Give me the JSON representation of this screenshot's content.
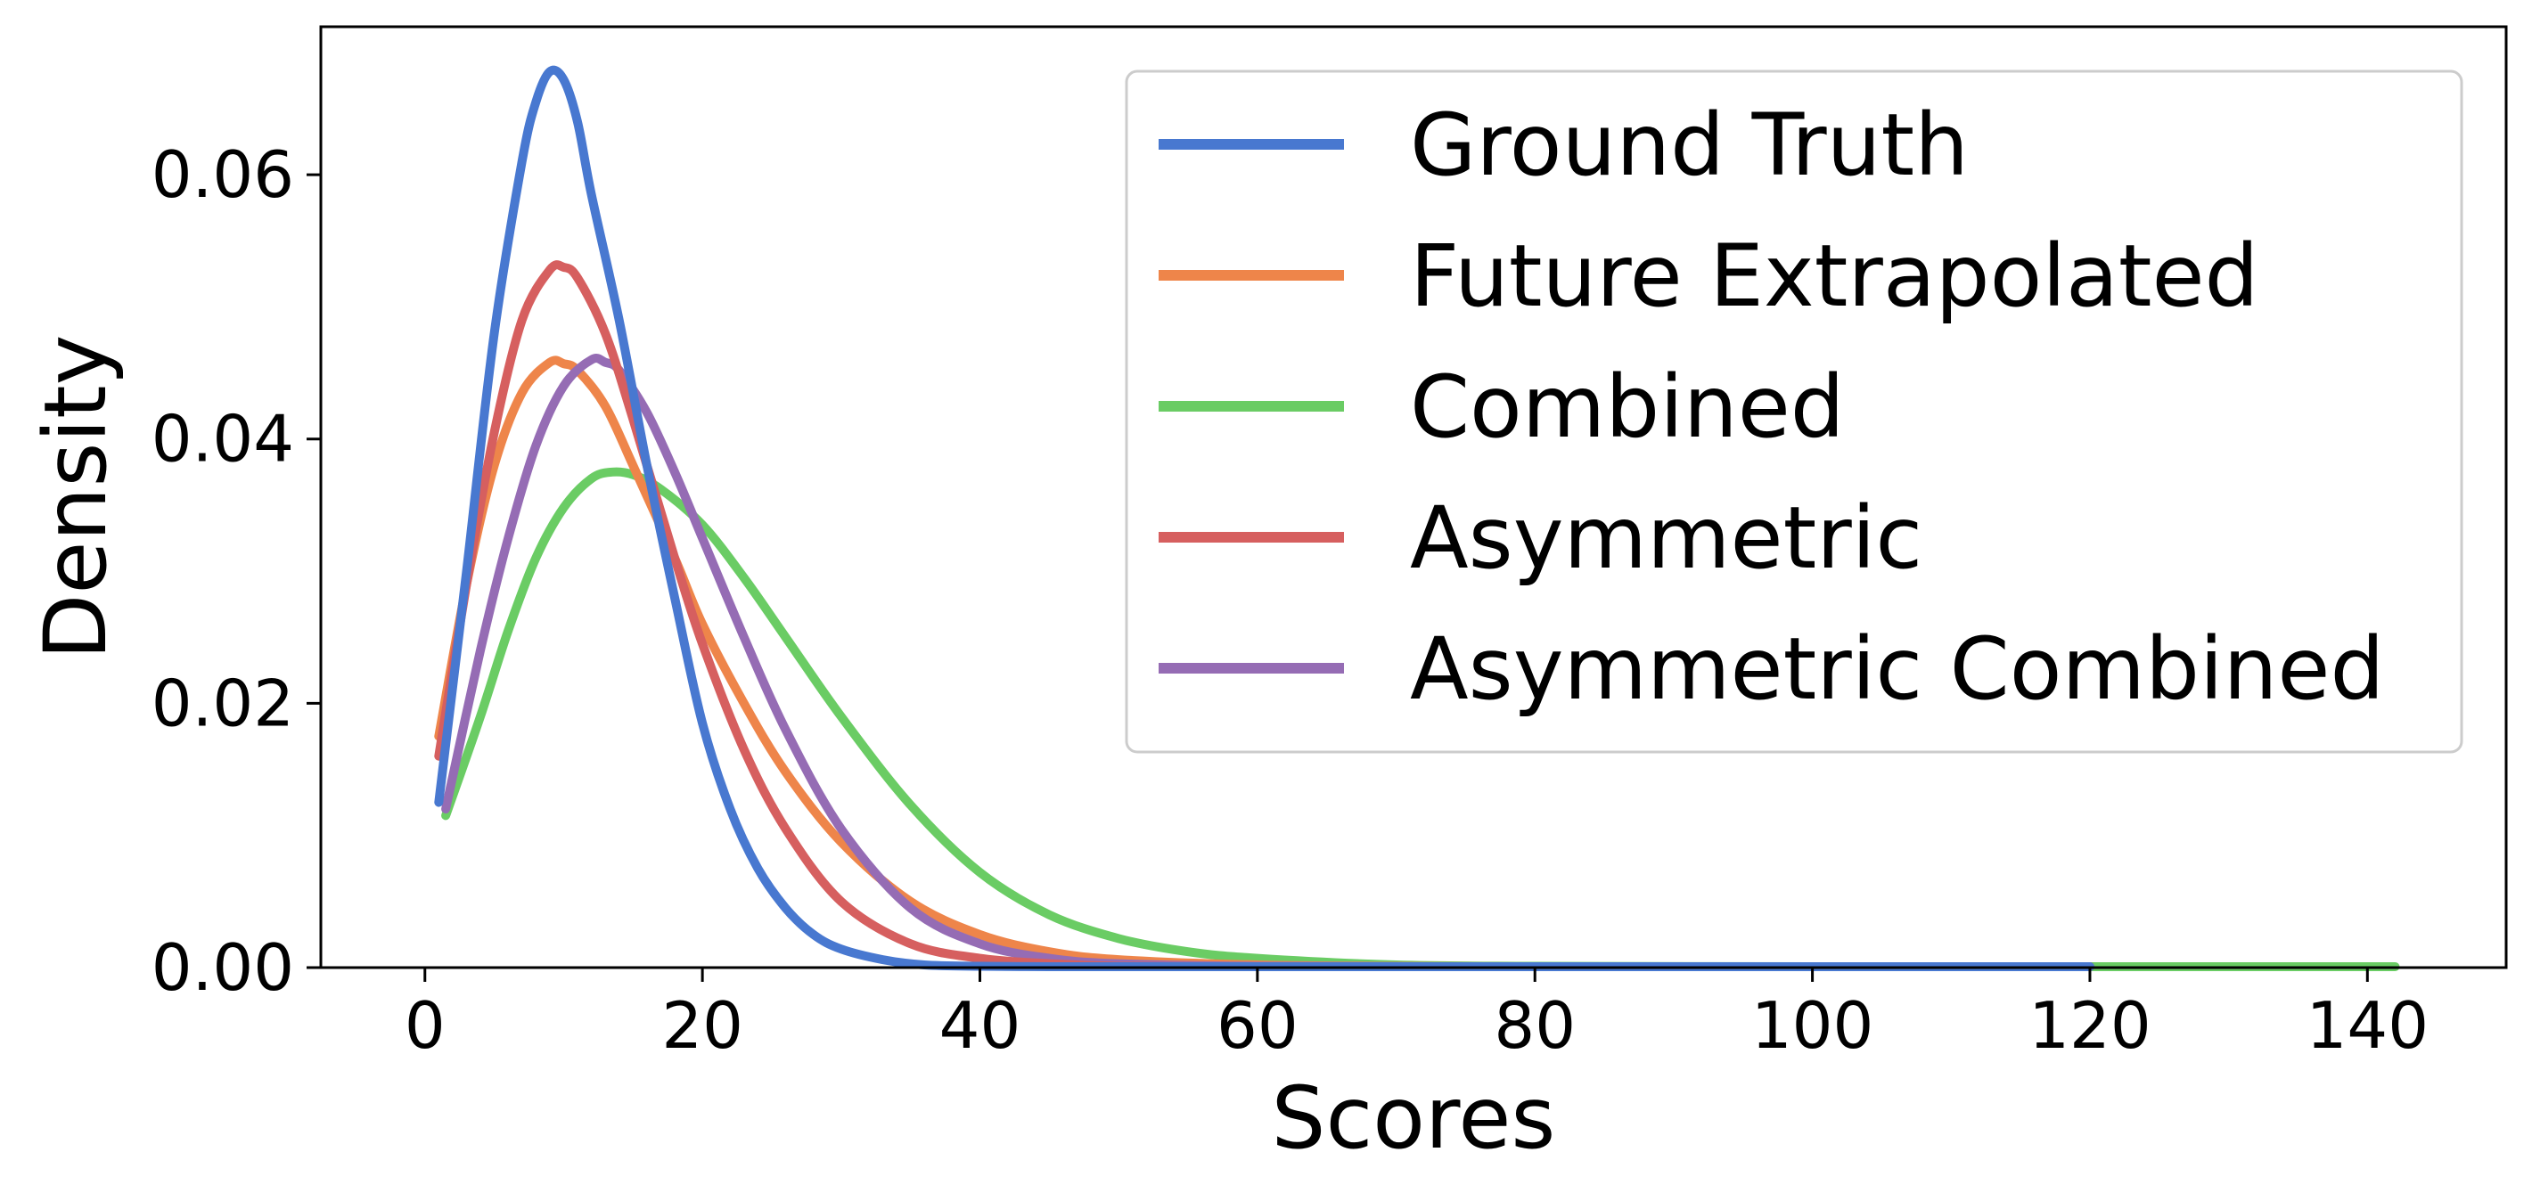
{
  "chart_data": {
    "type": "line",
    "title": "",
    "xlabel": "Scores",
    "ylabel": "Density",
    "xlim": [
      -7.5,
      150
    ],
    "ylim": [
      0,
      0.0712
    ],
    "x_ticks": [
      0,
      20,
      40,
      60,
      80,
      100,
      120,
      140
    ],
    "x_tick_labels": [
      "0",
      "20",
      "40",
      "60",
      "80",
      "100",
      "120",
      "140"
    ],
    "y_ticks": [
      0.0,
      0.02,
      0.04,
      0.06
    ],
    "y_tick_labels": [
      "0.00",
      "0.02",
      "0.04",
      "0.06"
    ],
    "grid": false,
    "legend_position": "upper right",
    "series": [
      {
        "name": "Ground Truth",
        "color": "#4878d0",
        "x": [
          1,
          3,
          5,
          7,
          8,
          9,
          10,
          11,
          12,
          14,
          16,
          18,
          20,
          22,
          24,
          26,
          28,
          30,
          33,
          36,
          40,
          45,
          50,
          60,
          80,
          100,
          120
        ],
        "y": [
          0.0125,
          0.03,
          0.048,
          0.061,
          0.0655,
          0.0678,
          0.0672,
          0.064,
          0.0585,
          0.049,
          0.038,
          0.028,
          0.0185,
          0.012,
          0.0075,
          0.0045,
          0.0025,
          0.0014,
          0.0006,
          0.0002,
          0.0001,
          0.0,
          0.0,
          0.0,
          0.0,
          0.0,
          0.0
        ]
      },
      {
        "name": "Future Extrapolated",
        "color": "#ee854a",
        "x": [
          1,
          3,
          5,
          7,
          9,
          10,
          11,
          13,
          15,
          18,
          20,
          23,
          26,
          30,
          35,
          40,
          45,
          50,
          60,
          70,
          80,
          100,
          120
        ],
        "y": [
          0.0175,
          0.029,
          0.038,
          0.0435,
          0.0458,
          0.0457,
          0.0452,
          0.0425,
          0.038,
          0.031,
          0.026,
          0.02,
          0.0148,
          0.0095,
          0.005,
          0.0025,
          0.0012,
          0.0006,
          0.0002,
          0.0001,
          0.0,
          0.0,
          0.0
        ]
      },
      {
        "name": "Combined",
        "color": "#6acc64",
        "x": [
          1.5,
          4,
          6,
          8,
          10,
          12,
          13.5,
          15,
          17,
          20,
          23,
          26,
          30,
          35,
          40,
          45,
          50,
          55,
          60,
          70,
          80,
          100,
          120,
          142
        ],
        "y": [
          0.0115,
          0.019,
          0.0255,
          0.031,
          0.0348,
          0.037,
          0.0375,
          0.0373,
          0.0362,
          0.0335,
          0.0295,
          0.025,
          0.019,
          0.0123,
          0.0072,
          0.004,
          0.0022,
          0.0012,
          0.0007,
          0.0002,
          0.0001,
          0.0,
          0.0,
          0.0
        ]
      },
      {
        "name": "Asymmetric",
        "color": "#d65f5f",
        "x": [
          1,
          3,
          5,
          7,
          9,
          10,
          11,
          13,
          15,
          18,
          20,
          23,
          26,
          30,
          35,
          40,
          45,
          50,
          60,
          80,
          100,
          120
        ],
        "y": [
          0.016,
          0.029,
          0.0405,
          0.049,
          0.0528,
          0.053,
          0.0522,
          0.048,
          0.0415,
          0.031,
          0.0245,
          0.0165,
          0.0105,
          0.005,
          0.0018,
          0.0007,
          0.0003,
          0.0001,
          0.0,
          0.0,
          0.0,
          0.0
        ]
      },
      {
        "name": "Asymmetric Combined",
        "color": "#956cb4",
        "x": [
          1.5,
          4,
          6,
          8,
          10,
          12,
          13,
          14,
          16,
          18,
          20,
          23,
          26,
          30,
          35,
          40,
          45,
          50,
          60,
          80,
          100,
          120
        ],
        "y": [
          0.012,
          0.024,
          0.0325,
          0.0395,
          0.044,
          0.046,
          0.0458,
          0.0452,
          0.042,
          0.0375,
          0.0325,
          0.025,
          0.018,
          0.0105,
          0.0045,
          0.0018,
          0.0007,
          0.0003,
          0.0001,
          0.0,
          0.0,
          0.0
        ]
      }
    ]
  }
}
